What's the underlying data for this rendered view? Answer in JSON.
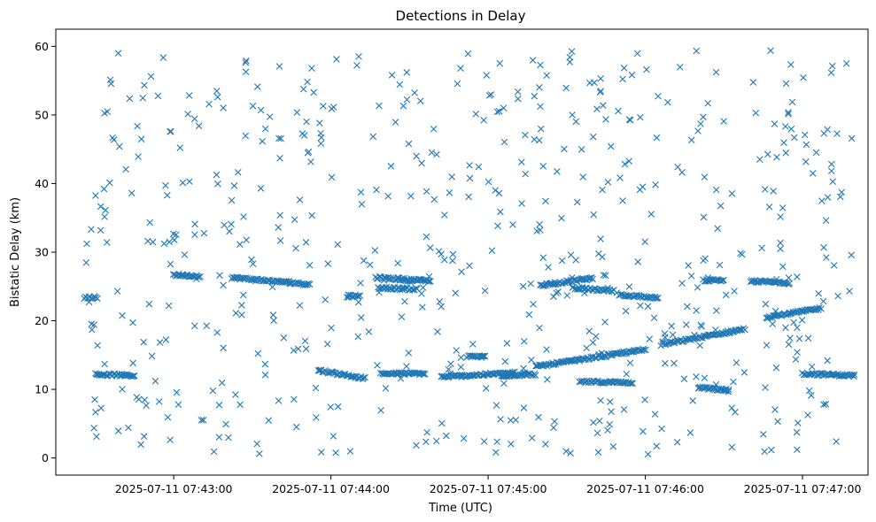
{
  "chart_data": {
    "type": "scatter",
    "title": "Detections in Delay",
    "xlabel": "Time (UTC)",
    "ylabel": "Bistatic Delay (km)",
    "marker": "x",
    "color": "#1f77b4",
    "grid": false,
    "legend": "none",
    "xlim": [
      "2025-07-11 07:42:15",
      "2025-07-11 07:47:25"
    ],
    "ylim": [
      -2.5,
      62.5
    ],
    "x_ticks": [
      "2025-07-11 07:43:00",
      "2025-07-11 07:44:00",
      "2025-07-11 07:45:00",
      "2025-07-11 07:46:00",
      "2025-07-11 07:47:00"
    ],
    "y_ticks": [
      0,
      10,
      20,
      30,
      40,
      50,
      60
    ],
    "time_range": [
      "2025-07-11 07:42:26",
      "2025-07-11 07:47:20"
    ],
    "tracks": [
      {
        "from": "2025-07-11 07:42:26",
        "to": "2025-07-11 07:42:31",
        "delay_start": 23.4,
        "delay_end": 23.4
      },
      {
        "from": "2025-07-11 07:42:30",
        "to": "2025-07-11 07:42:45",
        "delay_start": 12.2,
        "delay_end": 12.0
      },
      {
        "from": "2025-07-11 07:43:00",
        "to": "2025-07-11 07:43:10",
        "delay_start": 26.7,
        "delay_end": 26.5
      },
      {
        "from": "2025-07-11 07:43:22",
        "to": "2025-07-11 07:43:52",
        "delay_start": 26.3,
        "delay_end": 25.3
      },
      {
        "from": "2025-07-11 07:43:55",
        "to": "2025-07-11 07:44:13",
        "delay_start": 12.8,
        "delay_end": 11.6
      },
      {
        "from": "2025-07-11 07:44:06",
        "to": "2025-07-11 07:44:11",
        "delay_start": 23.6,
        "delay_end": 23.6
      },
      {
        "from": "2025-07-11 07:44:17",
        "to": "2025-07-11 07:44:38",
        "delay_start": 26.3,
        "delay_end": 25.8
      },
      {
        "from": "2025-07-11 07:44:18",
        "to": "2025-07-11 07:44:33",
        "delay_start": 24.8,
        "delay_end": 24.6
      },
      {
        "from": "2025-07-11 07:44:19",
        "to": "2025-07-11 07:44:36",
        "delay_start": 12.3,
        "delay_end": 12.3
      },
      {
        "from": "2025-07-11 07:44:42",
        "to": "2025-07-11 07:45:10",
        "delay_start": 11.8,
        "delay_end": 12.4
      },
      {
        "from": "2025-07-11 07:44:52",
        "to": "2025-07-11 07:44:59",
        "delay_start": 14.8,
        "delay_end": 14.8
      },
      {
        "from": "2025-07-11 07:45:05",
        "to": "2025-07-11 07:45:18",
        "delay_start": 12.0,
        "delay_end": 12.2
      },
      {
        "from": "2025-07-11 07:45:18",
        "to": "2025-07-11 07:46:00",
        "delay_start": 13.3,
        "delay_end": 15.8
      },
      {
        "from": "2025-07-11 07:45:20",
        "to": "2025-07-11 07:45:40",
        "delay_start": 25.2,
        "delay_end": 26.2
      },
      {
        "from": "2025-07-11 07:45:32",
        "to": "2025-07-11 07:45:48",
        "delay_start": 24.8,
        "delay_end": 24.3
      },
      {
        "from": "2025-07-11 07:45:35",
        "to": "2025-07-11 07:45:55",
        "delay_start": 11.1,
        "delay_end": 11.0
      },
      {
        "from": "2025-07-11 07:45:50",
        "to": "2025-07-11 07:46:05",
        "delay_start": 23.8,
        "delay_end": 23.3
      },
      {
        "from": "2025-07-11 07:46:06",
        "to": "2025-07-11 07:46:38",
        "delay_start": 16.5,
        "delay_end": 18.8
      },
      {
        "from": "2025-07-11 07:46:20",
        "to": "2025-07-11 07:46:32",
        "delay_start": 10.3,
        "delay_end": 9.8
      },
      {
        "from": "2025-07-11 07:46:22",
        "to": "2025-07-11 07:46:30",
        "delay_start": 25.9,
        "delay_end": 25.8
      },
      {
        "from": "2025-07-11 07:46:40",
        "to": "2025-07-11 07:46:55",
        "delay_start": 25.8,
        "delay_end": 25.5
      },
      {
        "from": "2025-07-11 07:46:46",
        "to": "2025-07-11 07:47:07",
        "delay_start": 20.5,
        "delay_end": 21.8
      },
      {
        "from": "2025-07-11 07:47:00",
        "to": "2025-07-11 07:47:20",
        "delay_start": 12.3,
        "delay_end": 12.0
      }
    ],
    "clutter": {
      "detections": 620,
      "delay_range": [
        0.5,
        59.5
      ]
    }
  }
}
